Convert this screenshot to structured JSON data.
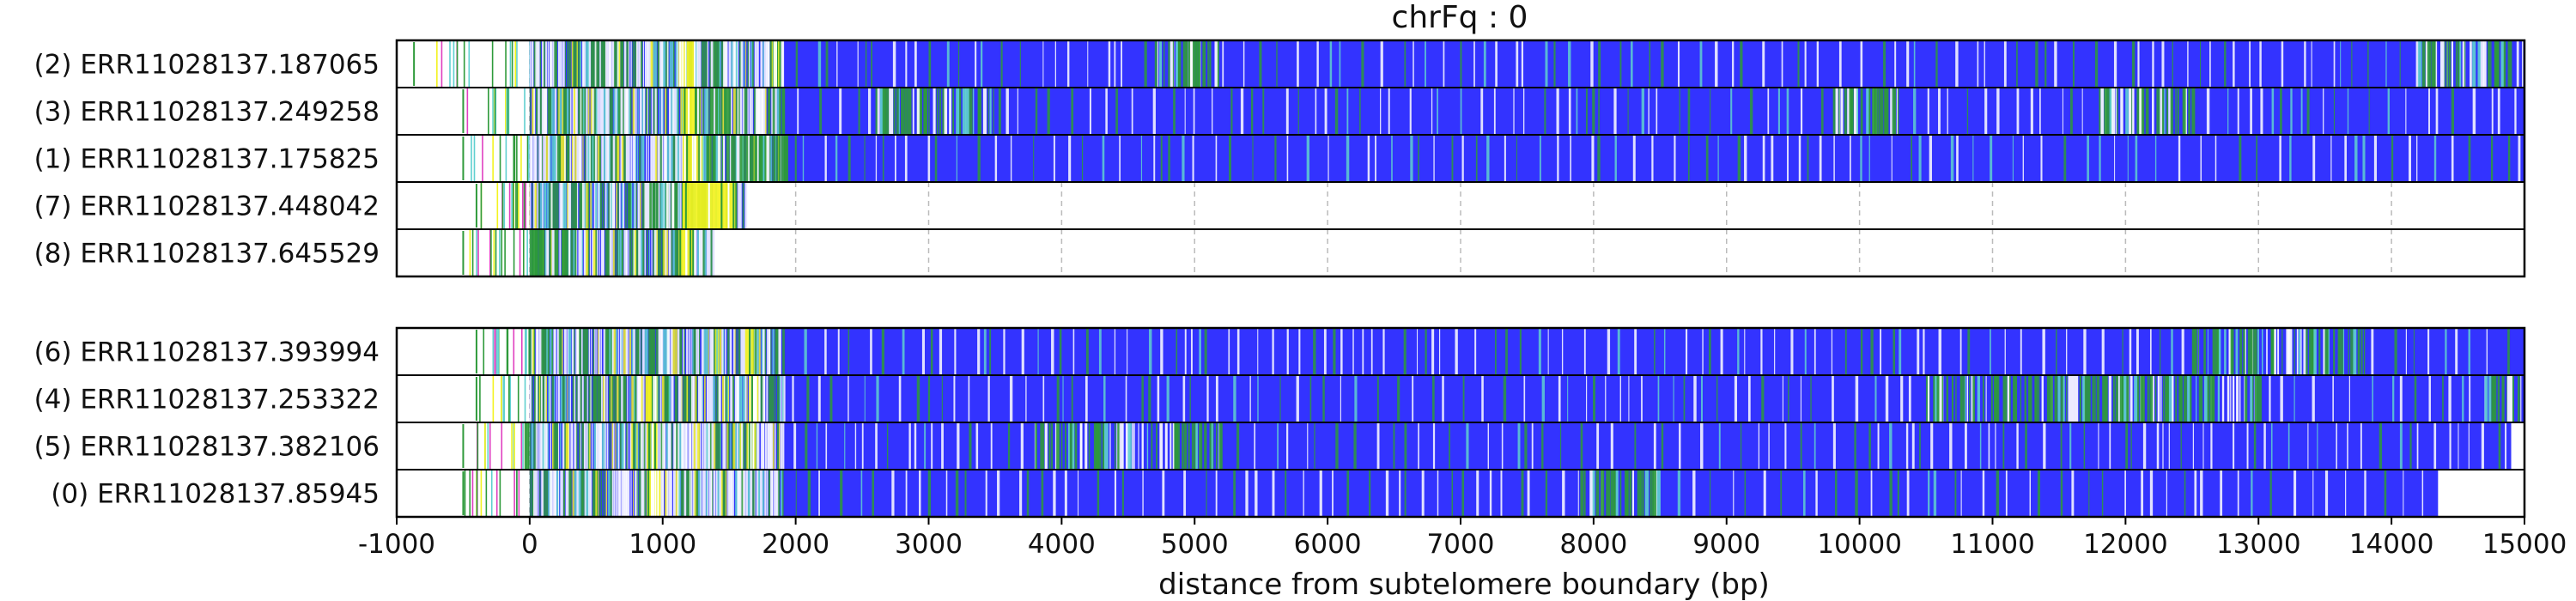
{
  "chart_data": {
    "type": "heatmap",
    "title": "chrFq : 0",
    "xlabel": "distance from subtelomere boundary (bp)",
    "xlim": [
      -1000,
      15000
    ],
    "xticks": [
      "-1000",
      "0",
      "1000",
      "2000",
      "3000",
      "4000",
      "5000",
      "6000",
      "7000",
      "8000",
      "9000",
      "10000",
      "11000",
      "12000",
      "13000",
      "14000",
      "15000"
    ],
    "grid": "vertical dashed",
    "colors": {
      "base": "#3333ff",
      "green": "#2e9a3a",
      "yellow": "#f3f320",
      "white": "#ffffff",
      "cyan": "#5fd0d0",
      "magenta": "#e040c0",
      "border": "#000000"
    },
    "panels": [
      {
        "reads": [
          {
            "label": "(2) ERR11028137.187065",
            "start": -870,
            "end": 14990,
            "yellow": [
              [
                1120,
                1240
              ],
              [
                1820,
                1880
              ]
            ],
            "green_dense": [
              [
                4700,
                5200
              ],
              [
                14200,
                14900
              ]
            ]
          },
          {
            "label": "(3) ERR11028137.249258",
            "start": -500,
            "end": 15000,
            "yellow": [
              [
                1150,
                1260
              ]
            ],
            "green_dense": [
              [
                1300,
                1500
              ],
              [
                2600,
                3500
              ],
              [
                9800,
                10300
              ],
              [
                11800,
                12500
              ]
            ]
          },
          {
            "label": "(1) ERR11028137.175825",
            "start": -500,
            "end": 15000,
            "yellow": [
              [
                1150,
                1260
              ]
            ],
            "green_dense": [
              [
                1300,
                1950
              ]
            ]
          },
          {
            "label": "(7) ERR11028137.448042",
            "start": -400,
            "end": 1640,
            "yellow": [
              [
                1150,
                1560
              ]
            ],
            "green_dense": [
              [
                900,
                1500
              ]
            ]
          },
          {
            "label": "(8) ERR11028137.645529",
            "start": -500,
            "end": 1390,
            "yellow": [
              [
                1120,
                1240
              ]
            ],
            "green_dense": [
              [
                0,
                300
              ]
            ]
          }
        ]
      },
      {
        "reads": [
          {
            "label": "(6) ERR11028137.393994",
            "start": -400,
            "end": 15000,
            "yellow": [
              [
                1620,
                1700
              ]
            ],
            "green_dense": [
              [
                12500,
                13800
              ]
            ]
          },
          {
            "label": "(4) ERR11028137.253322",
            "start": -400,
            "end": 15000,
            "yellow": [
              [
                870,
                960
              ],
              [
                1650,
                1720
              ]
            ],
            "green_dense": [
              [
                10500,
                13000
              ],
              [
                14700,
                14950
              ]
            ]
          },
          {
            "label": "(5) ERR11028137.382106",
            "start": -500,
            "end": 14900,
            "yellow": [
              [
                880,
                960
              ],
              [
                1640,
                1700
              ]
            ],
            "green_dense": [
              [
                3800,
                5200
              ]
            ]
          },
          {
            "label": "(0) ERR11028137.85945",
            "start": -500,
            "end": 14350,
            "yellow": [
              [
                880,
                970
              ]
            ],
            "green_dense": [
              [
                7900,
                8500
              ]
            ]
          }
        ]
      }
    ]
  }
}
